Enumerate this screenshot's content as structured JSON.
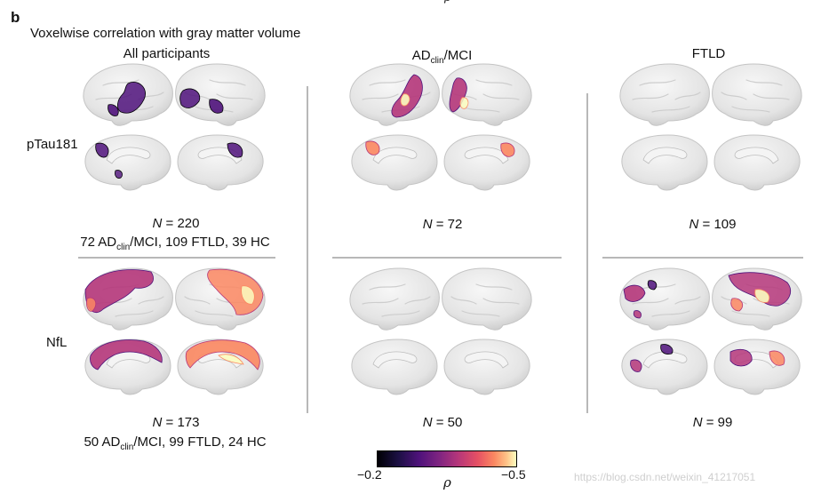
{
  "panel": {
    "letter": "b",
    "title": "Voxelwise correlation with gray matter volume",
    "top_partial_rho": "ρ"
  },
  "columns": [
    {
      "title_main": "All participants",
      "title_sub": "",
      "title_after": ""
    },
    {
      "title_main": "AD",
      "title_sub": "clin",
      "title_after": "/MCI"
    },
    {
      "title_main": "FTLD",
      "title_sub": "",
      "title_after": ""
    }
  ],
  "rows": [
    {
      "label": "pTau181"
    },
    {
      "label": "NfL"
    }
  ],
  "cells": [
    {
      "n_label": "N",
      "n_eq": " = 220",
      "detail_pre": "72 AD",
      "detail_sub": "clin",
      "detail_post": "/MCI, 109 FTLD, 39 HC"
    },
    {
      "n_label": "N",
      "n_eq": " = 72"
    },
    {
      "n_label": "N",
      "n_eq": " = 109"
    },
    {
      "n_label": "N",
      "n_eq": " = 173",
      "detail_pre": "50 AD",
      "detail_sub": "clin",
      "detail_post": "/MCI, 99 FTLD, 24 HC"
    },
    {
      "n_label": "N",
      "n_eq": " = 50"
    },
    {
      "n_label": "N",
      "n_eq": " = 99"
    }
  ],
  "colorbar": {
    "min_label": "−0.2",
    "max_label": "−0.5",
    "axis_label": "ρ",
    "colors": [
      "#000004",
      "#4f127b",
      "#b5367a",
      "#fb8761",
      "#fcfdbf"
    ]
  },
  "watermark": "https://blog.csdn.net/weixin_41217051",
  "colors": {
    "brain": "#e4e4e4",
    "brain_stroke": "#c4c4c4",
    "divider": "#b8b8b8"
  }
}
